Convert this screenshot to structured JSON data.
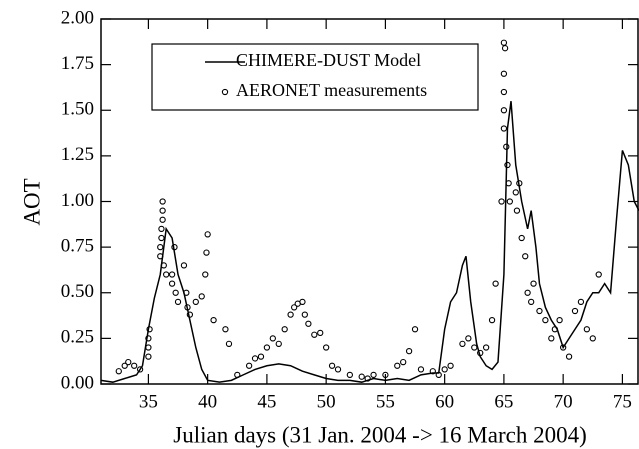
{
  "chart_data": {
    "type": "line",
    "xlabel": "Julian days (31 Jan. 2004 -> 16 March 2004)",
    "ylabel": "AOT",
    "xlim": [
      31,
      76.4
    ],
    "ylim": [
      0,
      2.0
    ],
    "xticks": [
      35,
      40,
      45,
      50,
      55,
      60,
      65,
      70,
      75
    ],
    "yticks": [
      {
        "value": 0,
        "label": "0.00"
      },
      {
        "value": 0.25,
        "label": "0.25"
      },
      {
        "value": 0.5,
        "label": "0.50"
      },
      {
        "value": 0.75,
        "label": "0.75"
      },
      {
        "value": 1.0,
        "label": "1.00"
      },
      {
        "value": 1.25,
        "label": "1.25"
      },
      {
        "value": 1.5,
        "label": "1.50"
      },
      {
        "value": 1.75,
        "label": "1.75"
      },
      {
        "value": 2.0,
        "label": "2.00"
      }
    ],
    "legend": "upper-left",
    "series": [
      {
        "name": "CHIMERE-DUST Model",
        "type": "line",
        "color": "#000000",
        "x": [
          31,
          32,
          33,
          34,
          34.5,
          35,
          35.5,
          36,
          36.5,
          37,
          37.5,
          38,
          38.5,
          39,
          39.5,
          40,
          41,
          42,
          43,
          44,
          45,
          46,
          47,
          48,
          49,
          50,
          51,
          52,
          53,
          54,
          55,
          56,
          57,
          58,
          59,
          59.5,
          60,
          60.5,
          61,
          61.5,
          61.8,
          62.2,
          62.7,
          63,
          63.5,
          64,
          64.5,
          65,
          65.3,
          65.6,
          66,
          66.5,
          67,
          67.3,
          67.7,
          68,
          68.5,
          69,
          69.5,
          70,
          70.5,
          71,
          71.5,
          72,
          72.5,
          73,
          73.5,
          74,
          74.5,
          75,
          75.5,
          76,
          76.4
        ],
        "values": [
          0.02,
          0.01,
          0.03,
          0.05,
          0.1,
          0.3,
          0.47,
          0.6,
          0.85,
          0.8,
          0.6,
          0.5,
          0.35,
          0.2,
          0.08,
          0.02,
          0.01,
          0.02,
          0.05,
          0.08,
          0.1,
          0.11,
          0.1,
          0.07,
          0.05,
          0.03,
          0.02,
          0.02,
          0.01,
          0.03,
          0.02,
          0.03,
          0.02,
          0.05,
          0.06,
          0.06,
          0.3,
          0.45,
          0.5,
          0.65,
          0.7,
          0.45,
          0.22,
          0.15,
          0.1,
          0.08,
          0.12,
          0.6,
          1.4,
          1.55,
          1.2,
          1.0,
          0.85,
          0.95,
          0.75,
          0.55,
          0.42,
          0.35,
          0.3,
          0.2,
          0.25,
          0.3,
          0.35,
          0.45,
          0.5,
          0.5,
          0.55,
          0.5,
          0.9,
          1.28,
          1.2,
          1.0,
          0.95
        ]
      },
      {
        "name": "AERONET measurements",
        "type": "scatter",
        "color": "#000000",
        "x": [
          32.5,
          33,
          33.3,
          33.8,
          34.3,
          35,
          35,
          35,
          35.1,
          36,
          36,
          36.1,
          36.1,
          36.2,
          36.2,
          36.2,
          36.3,
          36.5,
          37,
          37,
          37.2,
          37.3,
          37.5,
          38,
          38.2,
          38.3,
          38.5,
          39,
          39.5,
          39.8,
          39.9,
          40,
          40.5,
          41.5,
          41.8,
          42.5,
          43.5,
          44,
          44.5,
          45,
          45.5,
          46,
          46.5,
          47,
          47.3,
          47.6,
          48,
          48.2,
          48.5,
          49,
          49.5,
          50,
          50.5,
          51,
          52,
          53,
          53.5,
          54,
          55,
          56,
          56.5,
          57,
          57.5,
          58,
          59,
          59.5,
          60,
          60.5,
          61.5,
          62,
          62.5,
          63,
          63.5,
          64,
          64.3,
          64.8,
          65,
          65,
          65,
          65,
          65,
          65.1,
          65.2,
          65.3,
          65.4,
          65.5,
          66,
          66.1,
          66.3,
          66.5,
          66.8,
          67,
          67.3,
          67.5,
          68,
          68.5,
          69,
          69.3,
          69.7,
          70,
          70.5,
          71,
          71.5,
          72,
          72.5,
          73
        ],
        "values": [
          0.07,
          0.1,
          0.12,
          0.1,
          0.08,
          0.15,
          0.2,
          0.25,
          0.3,
          0.7,
          0.75,
          0.8,
          0.85,
          0.9,
          0.95,
          1.0,
          0.65,
          0.6,
          0.55,
          0.6,
          0.75,
          0.5,
          0.45,
          0.65,
          0.5,
          0.42,
          0.38,
          0.45,
          0.48,
          0.6,
          0.72,
          0.82,
          0.35,
          0.3,
          0.22,
          0.05,
          0.1,
          0.14,
          0.15,
          0.2,
          0.25,
          0.22,
          0.3,
          0.38,
          0.42,
          0.44,
          0.45,
          0.38,
          0.33,
          0.27,
          0.28,
          0.2,
          0.1,
          0.08,
          0.05,
          0.04,
          0.03,
          0.05,
          0.05,
          0.1,
          0.12,
          0.18,
          0.3,
          0.08,
          0.07,
          0.05,
          0.08,
          0.1,
          0.22,
          0.25,
          0.2,
          0.17,
          0.2,
          0.35,
          0.55,
          1.0,
          1.4,
          1.5,
          1.6,
          1.7,
          1.87,
          1.84,
          1.3,
          1.2,
          1.1,
          1.0,
          1.05,
          0.95,
          1.1,
          0.8,
          0.7,
          0.5,
          0.45,
          0.55,
          0.4,
          0.35,
          0.25,
          0.3,
          0.35,
          0.2,
          0.15,
          0.4,
          0.45,
          0.3,
          0.25,
          0.6
        ]
      }
    ]
  }
}
